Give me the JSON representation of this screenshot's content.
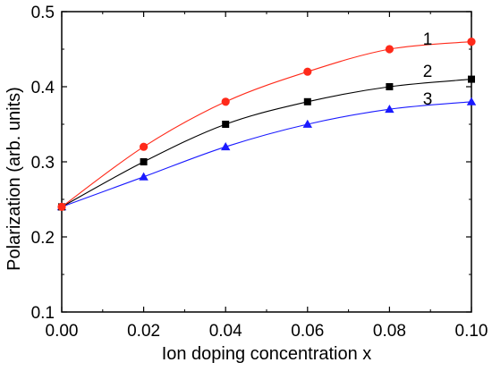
{
  "chart_data": {
    "type": "line",
    "title": "",
    "xlabel": "Ion doping concentration x",
    "ylabel": "Polarization (arb. units)",
    "xlim": [
      0.0,
      0.1
    ],
    "ylim": [
      0.1,
      0.5
    ],
    "x_ticks": [
      "0.00",
      "0.02",
      "0.04",
      "0.06",
      "0.08",
      "0.10"
    ],
    "y_ticks": [
      "0.1",
      "0.2",
      "0.3",
      "0.4",
      "0.5"
    ],
    "grid": false,
    "legend": "none",
    "x": [
      0.0,
      0.02,
      0.04,
      0.06,
      0.08,
      0.1
    ],
    "series": [
      {
        "label": "1",
        "color": "#ff2a1a",
        "marker": "circle",
        "values": [
          0.24,
          0.32,
          0.38,
          0.42,
          0.45,
          0.46
        ]
      },
      {
        "label": "2",
        "color": "#000000",
        "marker": "square",
        "values": [
          0.24,
          0.3,
          0.35,
          0.38,
          0.4,
          0.41
        ]
      },
      {
        "label": "3",
        "color": "#1a1aff",
        "marker": "triangle",
        "values": [
          0.24,
          0.28,
          0.32,
          0.35,
          0.37,
          0.38
        ]
      }
    ]
  }
}
